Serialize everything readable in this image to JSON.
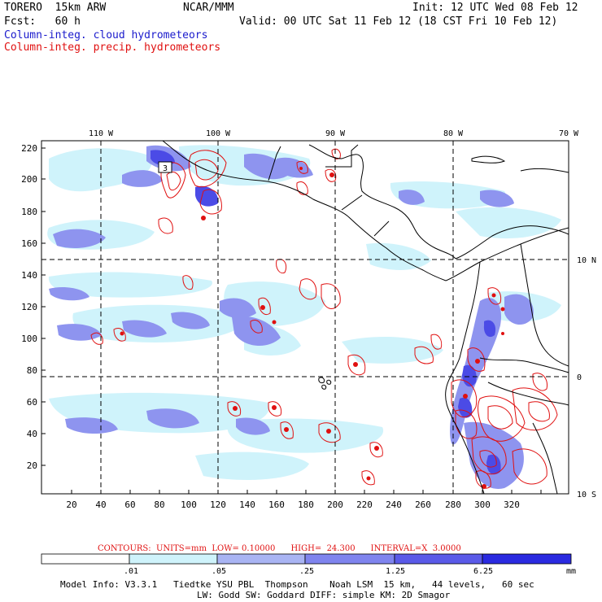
{
  "header": {
    "model_title": "TORERO  15km ARW",
    "org": "NCAR/MMM",
    "init": "Init: 12 UTC Wed 08 Feb 12",
    "fcst": "Fcst:   60 h",
    "valid": "Valid: 00 UTC Sat 11 Feb 12 (18 CST Fri 10 Feb 12)",
    "field1": "Column-integ. cloud hydrometeors",
    "field2": "Column-integ. precip. hydrometeors"
  },
  "map": {
    "top_lon_labels": [
      "110 W",
      "100 W",
      "90 W",
      "80 W",
      "70 W"
    ],
    "right_lat_labels": [
      "10 N",
      "0",
      "10 S"
    ],
    "y_ticks": [
      "220",
      "200",
      "180",
      "160",
      "140",
      "120",
      "100",
      "80",
      "60",
      "40",
      "20"
    ],
    "x_ticks": [
      "20",
      "40",
      "60",
      "80",
      "100",
      "120",
      "140",
      "160",
      "180",
      "200",
      "220",
      "240",
      "260",
      "280",
      "300",
      "320"
    ],
    "station_label": "3"
  },
  "contour_info": {
    "label": "CONTOURS:  UNITS=mm  LOW= 0.10000      HIGH=  24.300      INTERVAL=X  3.0000"
  },
  "colorbar": {
    "colors": [
      "#ffffff",
      "#cff3fb",
      "#a9b4f3",
      "#7f84ee",
      "#5a5ae8",
      "#2a2ae0"
    ],
    "ticks": [
      ".01",
      ".05",
      ".25",
      "1.25",
      "6.25"
    ],
    "unit": "mm"
  },
  "footer": {
    "line1": "Model Info: V3.3.1   Tiedtke YSU PBL  Thompson    Noah LSM  15 km,   44 levels,   60 sec",
    "line2": "LW: Godd SW: Goddard DIFF: simple KM: 2D Smagor"
  }
}
